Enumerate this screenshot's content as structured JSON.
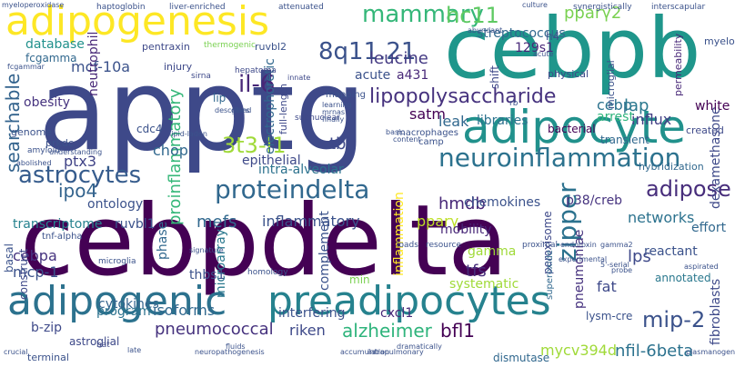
{
  "words": [
    {
      "text": "cebpdelta",
      "color": "#440154"
    },
    {
      "text": "apptg",
      "color": "#3e4989"
    },
    {
      "text": "cebpb",
      "color": "#1f968b"
    },
    {
      "text": "adipogenesis",
      "color": "#fde725"
    },
    {
      "text": "adipocyte",
      "color": "#21918c"
    },
    {
      "text": "preadipocytes",
      "color": "#26828e"
    },
    {
      "text": "adipogenic",
      "color": "#2c728e"
    },
    {
      "text": "proteindelta",
      "color": "#31688e"
    },
    {
      "text": "neuroinflammation",
      "color": "#2c728e"
    },
    {
      "text": "lipopolysaccharide",
      "color": "#46327e"
    },
    {
      "text": "astrocytes",
      "color": "#365c8d"
    },
    {
      "text": "3t3-l1",
      "color": "#a0da39"
    },
    {
      "text": "il-6",
      "color": "#482878"
    },
    {
      "text": "8q11.21",
      "color": "#3b528b"
    },
    {
      "text": "mammary",
      "color": "#35b779"
    },
    {
      "text": "hc11",
      "color": "#5ec962"
    },
    {
      "text": "pparγ2",
      "color": "#7ad151"
    },
    {
      "text": "searchable",
      "color": "#33638d"
    },
    {
      "text": "zipper",
      "color": "#2c728e"
    },
    {
      "text": "leucine",
      "color": "#443a83"
    },
    {
      "text": "streptococcus",
      "color": "#31688e"
    },
    {
      "text": "mcf-10a",
      "color": "#3b528b"
    },
    {
      "text": "proinflammatory",
      "color": "#35b779"
    },
    {
      "text": "ptx3",
      "color": "#414487"
    },
    {
      "text": "ipo4",
      "color": "#33638d"
    },
    {
      "text": "chop",
      "color": "#31688e"
    },
    {
      "text": "tbi",
      "color": "#3e4989"
    },
    {
      "text": "satm",
      "color": "#440154"
    },
    {
      "text": "cebp",
      "color": "#2c728e"
    },
    {
      "text": "lap",
      "color": "#2a788e"
    },
    {
      "text": "influx",
      "color": "#433e85"
    },
    {
      "text": "cebpa",
      "color": "#46337f"
    },
    {
      "text": "mcp-1",
      "color": "#3b528b"
    },
    {
      "text": "transcriptome",
      "color": "#26828e"
    },
    {
      "text": "mefs",
      "color": "#31688e"
    },
    {
      "text": "inflammatory",
      "color": "#3b528b"
    },
    {
      "text": "hmdb",
      "color": "#482878"
    },
    {
      "text": "pparγ",
      "color": "#bddf26"
    },
    {
      "text": "adipose",
      "color": "#472d7b"
    },
    {
      "text": "networks",
      "color": "#2c728e"
    },
    {
      "text": "lps",
      "color": "#3e4989"
    },
    {
      "text": "tfs",
      "color": "#472d7b"
    },
    {
      "text": "mip-2",
      "color": "#3b528b"
    },
    {
      "text": "pneumococcal",
      "color": "#46327e"
    },
    {
      "text": "alzheimer",
      "color": "#2fb47c"
    },
    {
      "text": "bfl1",
      "color": "#440154"
    },
    {
      "text": "mycv394d",
      "color": "#a0da39"
    },
    {
      "text": "nfil-6beta",
      "color": "#2c728e"
    },
    {
      "text": "riken",
      "color": "#3e4989"
    },
    {
      "text": "isoforms",
      "color": "#31688e"
    },
    {
      "text": "cytokines",
      "color": "#33638d"
    },
    {
      "text": "microarray",
      "color": "#2a788e"
    },
    {
      "text": "systematic",
      "color": "#a0da39"
    },
    {
      "text": "complement",
      "color": "#3b528b"
    },
    {
      "text": "pneumoniae",
      "color": "#46327e"
    },
    {
      "text": "inflammation",
      "color": "#fde725"
    },
    {
      "text": "chemokines",
      "color": "#3b528b"
    },
    {
      "text": "p38/creb",
      "color": "#46337f"
    },
    {
      "text": "dexamethasone",
      "color": "#3e4989"
    },
    {
      "text": "database",
      "color": "#21918c"
    },
    {
      "text": "fcgamma",
      "color": "#31688e"
    },
    {
      "text": "obesity",
      "color": "#46337f"
    },
    {
      "text": "neutrophil",
      "color": "#482878"
    },
    {
      "text": "ontology",
      "color": "#3b528b"
    },
    {
      "text": "epithelial",
      "color": "#3e4989"
    },
    {
      "text": "intra-alveolar",
      "color": "#2c728e"
    },
    {
      "text": "electrophoretic",
      "color": "#31688e"
    },
    {
      "text": "a431",
      "color": "#482878"
    },
    {
      "text": "acute",
      "color": "#3b528b"
    },
    {
      "text": "shift",
      "color": "#3e4989"
    },
    {
      "text": "leak",
      "color": "#31688e"
    },
    {
      "text": "libraries",
      "color": "#2c728e"
    },
    {
      "text": "arrest",
      "color": "#2fb47c"
    },
    {
      "text": "bacterial",
      "color": "#440154"
    },
    {
      "text": "ruvbl1",
      "color": "#3b528b"
    },
    {
      "text": "mobility",
      "color": "#482878"
    },
    {
      "text": "gamma",
      "color": "#a0da39"
    },
    {
      "text": "reactant",
      "color": "#3b528b"
    },
    {
      "text": "transient",
      "color": "#31688e"
    },
    {
      "text": "white",
      "color": "#440154"
    },
    {
      "text": "effort",
      "color": "#31688e"
    },
    {
      "text": "fibroblasts",
      "color": "#3e4989"
    },
    {
      "text": "fat",
      "color": "#3e4989"
    },
    {
      "text": "phase",
      "color": "#31688e"
    },
    {
      "text": "program",
      "color": "#2c728e"
    },
    {
      "text": "thbs1",
      "color": "#3b528b"
    },
    {
      "text": "min",
      "color": "#7ad151"
    },
    {
      "text": "interfering",
      "color": "#3b528b"
    },
    {
      "text": "cxcl1",
      "color": "#482878"
    },
    {
      "text": "b-zip",
      "color": "#3e4989"
    },
    {
      "text": "astroglial",
      "color": "#3e4989"
    },
    {
      "text": "annotated",
      "color": "#2a788e"
    },
    {
      "text": "dismutase",
      "color": "#31688e"
    },
    {
      "text": "lysm-cre",
      "color": "#3b528b"
    },
    {
      "text": "basal",
      "color": "#3b528b"
    },
    {
      "text": "construct",
      "color": "#3e4989"
    },
    {
      "text": "peroxisome",
      "color": "#3e4989"
    },
    {
      "text": "superoxide",
      "color": "#31688e"
    },
    {
      "text": "129s1",
      "color": "#482878"
    },
    {
      "text": "h4",
      "color": "#3b528b"
    },
    {
      "text": "myeloid",
      "color": "#3b528b"
    },
    {
      "text": "permeability",
      "color": "#482878"
    },
    {
      "text": "microglial",
      "color": "#3b528b"
    },
    {
      "text": "hybridization",
      "color": "#31688e"
    },
    {
      "text": "genome",
      "color": "#3b528b"
    },
    {
      "text": "cdc4",
      "color": "#3b528b"
    },
    {
      "text": "lip",
      "color": "#31688e"
    },
    {
      "text": "full-length",
      "color": "#3e4989"
    },
    {
      "text": "prkdc",
      "color": "#3b528b"
    },
    {
      "text": "injury",
      "color": "#3e4989"
    },
    {
      "text": "pentraxin",
      "color": "#3e4989"
    },
    {
      "text": "ruvbl2",
      "color": "#3b528b"
    },
    {
      "text": "hepatoma",
      "color": "#3e4989"
    },
    {
      "text": "physical",
      "color": "#3e4989"
    },
    {
      "text": "created",
      "color": "#3e4989"
    },
    {
      "text": "terminal",
      "color": "#3b528b"
    },
    {
      "text": "bat",
      "color": "#3e4989"
    },
    {
      "text": "tnf-alpha",
      "color": "#3b528b"
    },
    {
      "text": "microglia",
      "color": "#3b528b"
    },
    {
      "text": "homology",
      "color": "#3b528b"
    },
    {
      "text": "amyloid",
      "color": "#3b528b"
    },
    {
      "text": "mapping",
      "color": "#3b528b"
    },
    {
      "text": "macrophages",
      "color": "#3b528b"
    },
    {
      "text": "camp",
      "color": "#3b528b"
    },
    {
      "text": "haptoglobin",
      "color": "#3b528b"
    },
    {
      "text": "liver-enriched",
      "color": "#3b528b"
    },
    {
      "text": "attenuated",
      "color": "#3b528b"
    },
    {
      "text": "synergistically",
      "color": "#3b528b"
    },
    {
      "text": "interscapular",
      "color": "#3b528b"
    },
    {
      "text": "myeloperoxidase",
      "color": "#3b528b"
    },
    {
      "text": "culture",
      "color": "#3b528b"
    },
    {
      "text": "abundant",
      "color": "#3b528b"
    },
    {
      "text": "thermogenic",
      "color": "#7ad151"
    },
    {
      "text": "sirna",
      "color": "#3e4989"
    },
    {
      "text": "innate",
      "color": "#3e4989"
    },
    {
      "text": "acute",
      "color": "#3b528b"
    },
    {
      "text": "subnuclear",
      "color": "#3e4989"
    },
    {
      "text": "resource",
      "color": "#3b528b"
    },
    {
      "text": "loads",
      "color": "#3b528b"
    },
    {
      "text": "proximal",
      "color": "#3b528b"
    },
    {
      "text": "rb",
      "color": "#3b528b"
    },
    {
      "text": "endotoxin",
      "color": "#3b528b"
    },
    {
      "text": "late",
      "color": "#3b528b"
    },
    {
      "text": "crucial",
      "color": "#3b528b"
    },
    {
      "text": "learning",
      "color": "#3b528b"
    },
    {
      "text": "mrnas",
      "color": "#3b528b"
    },
    {
      "text": "finally",
      "color": "#3b528b"
    },
    {
      "text": "gland",
      "color": "#3b528b"
    },
    {
      "text": "describes",
      "color": "#3b528b"
    },
    {
      "text": "lipid-laden",
      "color": "#3b528b"
    },
    {
      "text": "abolished",
      "color": "#3b528b"
    },
    {
      "text": "accumulation",
      "color": "#3b528b"
    },
    {
      "text": "neuropathogenesis",
      "color": "#3b528b"
    },
    {
      "text": "probe",
      "color": "#3b528b"
    },
    {
      "text": "plasmanogen",
      "color": "#3b528b"
    },
    {
      "text": "intrapulmonary",
      "color": "#3b528b"
    },
    {
      "text": "signature",
      "color": "#3b528b"
    },
    {
      "text": "basic",
      "color": "#3b528b"
    },
    {
      "text": "gamma2",
      "color": "#3b528b"
    },
    {
      "text": "fcgammar",
      "color": "#3b528b"
    },
    {
      "text": "5'-serial",
      "color": "#3b528b"
    },
    {
      "text": "aspirated",
      "color": "#3b528b"
    },
    {
      "text": "experimental",
      "color": "#3b528b"
    },
    {
      "text": "content",
      "color": "#3b528b"
    },
    {
      "text": "fluids",
      "color": "#3b528b"
    },
    {
      "text": "dramatically",
      "color": "#3b528b"
    },
    {
      "text": "understanding",
      "color": "#3b528b"
    }
  ]
}
